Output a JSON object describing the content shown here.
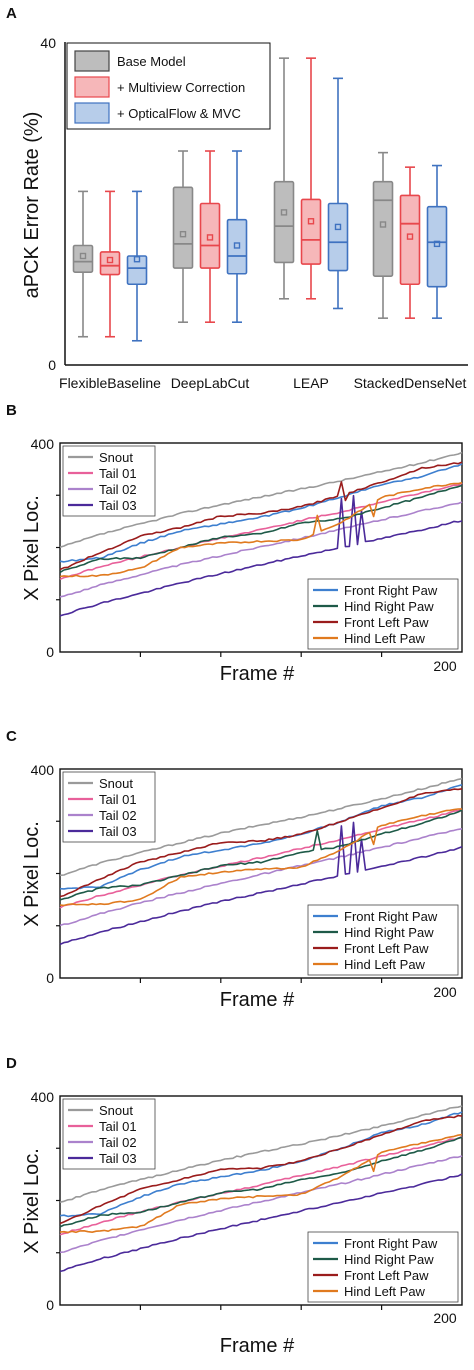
{
  "chart_data": [
    {
      "panel": "A",
      "type": "box",
      "ylabel": "aPCK Error Rate (%)",
      "ylim": [
        0,
        40
      ],
      "yticks": [
        0,
        40
      ],
      "categories": [
        "FlexibleBaseline",
        "DeepLabCut",
        "LEAP",
        "StackedDenseNet"
      ],
      "legend_position": "top-left",
      "series": [
        {
          "name": "Base Model",
          "color": "#888888",
          "fill": "#bdbdbd",
          "boxes": [
            {
              "whislo": 3.5,
              "q1": 11.5,
              "med": 12.8,
              "q3": 14.8,
              "whishi": 21.5,
              "mean": 13.5
            },
            {
              "whislo": 5.3,
              "q1": 12.0,
              "med": 15.0,
              "q3": 22.0,
              "whishi": 26.5,
              "mean": 16.2
            },
            {
              "whislo": 8.2,
              "q1": 12.7,
              "med": 17.2,
              "q3": 22.7,
              "whishi": 38.0,
              "mean": 18.9
            },
            {
              "whislo": 5.8,
              "q1": 11.0,
              "med": 20.4,
              "q3": 22.7,
              "whishi": 26.3,
              "mean": 17.4
            }
          ]
        },
        {
          "name": "+ Multiview Correction",
          "color": "#e8474c",
          "fill": "#f6b7b9",
          "boxes": [
            {
              "whislo": 3.5,
              "q1": 11.2,
              "med": 12.3,
              "q3": 14.0,
              "whishi": 21.5,
              "mean": 13.0
            },
            {
              "whislo": 5.3,
              "q1": 12.0,
              "med": 14.8,
              "q3": 20.0,
              "whishi": 26.5,
              "mean": 15.8
            },
            {
              "whislo": 8.2,
              "q1": 12.5,
              "med": 15.5,
              "q3": 20.5,
              "whishi": 38.0,
              "mean": 17.8
            },
            {
              "whislo": 5.8,
              "q1": 10.0,
              "med": 17.5,
              "q3": 21.0,
              "whishi": 24.5,
              "mean": 15.9
            }
          ]
        },
        {
          "name": "+ OpticalFlow & MVC",
          "color": "#3f72c0",
          "fill": "#b7cdea",
          "boxes": [
            {
              "whislo": 3.0,
              "q1": 10.0,
              "med": 12.0,
              "q3": 13.5,
              "whishi": 21.5,
              "mean": 13.1
            },
            {
              "whislo": 5.3,
              "q1": 11.3,
              "med": 13.5,
              "q3": 18.0,
              "whishi": 26.5,
              "mean": 14.8
            },
            {
              "whislo": 7.0,
              "q1": 11.7,
              "med": 15.2,
              "q3": 20.0,
              "whishi": 35.5,
              "mean": 17.1
            },
            {
              "whislo": 5.8,
              "q1": 9.7,
              "med": 15.2,
              "q3": 19.6,
              "whishi": 24.7,
              "mean": 15.0
            }
          ]
        }
      ]
    },
    {
      "panel": "B",
      "type": "line",
      "xlabel": "Frame #",
      "ylabel": "X Pixel Loc.",
      "xlim": [
        0,
        200
      ],
      "ylim": [
        0,
        400
      ],
      "xtick_label": "200",
      "yticks": [
        0,
        400
      ],
      "legend_top_left": [
        "Snout",
        "Tail 01",
        "Tail 02",
        "Tail 03"
      ],
      "legend_bottom_right": [
        "Front Right Paw",
        "Hind Right Paw",
        "Front Left Paw",
        "Hind Left Paw"
      ]
    },
    {
      "panel": "C",
      "type": "line",
      "xlabel": "Frame #",
      "ylabel": "X Pixel Loc.",
      "xlim": [
        0,
        200
      ],
      "ylim": [
        0,
        400
      ],
      "xtick_label": "200",
      "yticks": [
        0,
        400
      ],
      "legend_top_left": [
        "Snout",
        "Tail 01",
        "Tail 02",
        "Tail 03"
      ],
      "legend_bottom_right": [
        "Front Right Paw",
        "Hind Right Paw",
        "Front Left Paw",
        "Hind Left Paw"
      ]
    },
    {
      "panel": "D",
      "type": "line",
      "xlabel": "Frame #",
      "ylabel": "X Pixel Loc.",
      "xlim": [
        0,
        200
      ],
      "ylim": [
        0,
        400
      ],
      "xtick_label": "200",
      "yticks": [
        0,
        400
      ],
      "legend_top_left": [
        "Snout",
        "Tail 01",
        "Tail 02",
        "Tail 03"
      ],
      "legend_bottom_right": [
        "Front Right Paw",
        "Hind Right Paw",
        "Front Left Paw",
        "Hind Left Paw"
      ]
    }
  ],
  "line_series": {
    "names": [
      "Snout",
      "Tail 01",
      "Tail 02",
      "Tail 03",
      "Front Right Paw",
      "Hind Right Paw",
      "Front Left Paw",
      "Hind Left Paw"
    ],
    "colors": [
      "#9a9a9a",
      "#e8609a",
      "#ab82cc",
      "#4b2a9a",
      "#3d7fcf",
      "#1e5a48",
      "#9a1c1c",
      "#e07a1f"
    ],
    "x": [
      0,
      20,
      40,
      60,
      80,
      100,
      120,
      140,
      160,
      180,
      200
    ],
    "B": {
      "Snout": [
        200,
        225,
        245,
        265,
        282,
        297,
        312,
        328,
        345,
        362,
        382
      ],
      "Tail 01": [
        140,
        163,
        182,
        200,
        218,
        234,
        252,
        268,
        287,
        305,
        322
      ],
      "Tail 02": [
        105,
        128,
        148,
        167,
        184,
        202,
        218,
        235,
        253,
        270,
        287
      ],
      "Tail 03": [
        70,
        93,
        112,
        132,
        150,
        167,
        184,
        200,
        217,
        234,
        252
      ],
      "Front Right Paw": [
        173,
        180,
        208,
        232,
        245,
        258,
        275,
        297,
        320,
        336,
        360
      ],
      "Hind Right Paw": [
        153,
        178,
        180,
        200,
        220,
        226,
        247,
        255,
        276,
        296,
        320
      ],
      "Front Left Paw": [
        157,
        190,
        222,
        238,
        260,
        265,
        278,
        300,
        325,
        352,
        363
      ],
      "Hind Left Paw": [
        145,
        146,
        160,
        200,
        208,
        212,
        215,
        248,
        296,
        313,
        325
      ]
    },
    "C": {
      "Snout": [
        196,
        220,
        240,
        259,
        277,
        293,
        308,
        325,
        343,
        362,
        382
      ],
      "Tail 01": [
        135,
        158,
        178,
        197,
        214,
        230,
        248,
        266,
        285,
        303,
        322
      ],
      "Tail 02": [
        100,
        123,
        144,
        163,
        181,
        198,
        215,
        232,
        250,
        268,
        286
      ],
      "Tail 03": [
        65,
        88,
        108,
        128,
        146,
        163,
        180,
        197,
        214,
        231,
        250
      ],
      "Front Right Paw": [
        170,
        175,
        207,
        232,
        245,
        258,
        275,
        300,
        330,
        345,
        370
      ],
      "Hind Right Paw": [
        150,
        172,
        178,
        196,
        215,
        222,
        240,
        252,
        276,
        296,
        320
      ],
      "Front Left Paw": [
        155,
        190,
        222,
        240,
        260,
        262,
        275,
        300,
        325,
        352,
        362
      ],
      "Hind Left Paw": [
        140,
        141,
        150,
        193,
        203,
        208,
        212,
        246,
        292,
        310,
        325
      ]
    },
    "D": {
      "Snout": [
        196,
        220,
        240,
        259,
        277,
        293,
        308,
        325,
        343,
        362,
        382
      ],
      "Tail 01": [
        135,
        158,
        178,
        197,
        214,
        230,
        248,
        266,
        285,
        303,
        322
      ],
      "Tail 02": [
        100,
        123,
        144,
        163,
        181,
        198,
        215,
        232,
        250,
        268,
        286
      ],
      "Tail 03": [
        65,
        88,
        108,
        128,
        146,
        163,
        180,
        197,
        214,
        231,
        250
      ],
      "Front Right Paw": [
        170,
        175,
        207,
        232,
        245,
        258,
        275,
        300,
        330,
        345,
        370
      ],
      "Hind Right Paw": [
        150,
        172,
        178,
        196,
        215,
        222,
        240,
        252,
        276,
        296,
        320
      ],
      "Front Left Paw": [
        155,
        190,
        222,
        240,
        260,
        262,
        275,
        300,
        325,
        352,
        362
      ],
      "Hind Left Paw": [
        140,
        141,
        150,
        193,
        203,
        208,
        212,
        246,
        292,
        310,
        325
      ]
    }
  },
  "panel_labels": [
    "A",
    "B",
    "C",
    "D"
  ]
}
